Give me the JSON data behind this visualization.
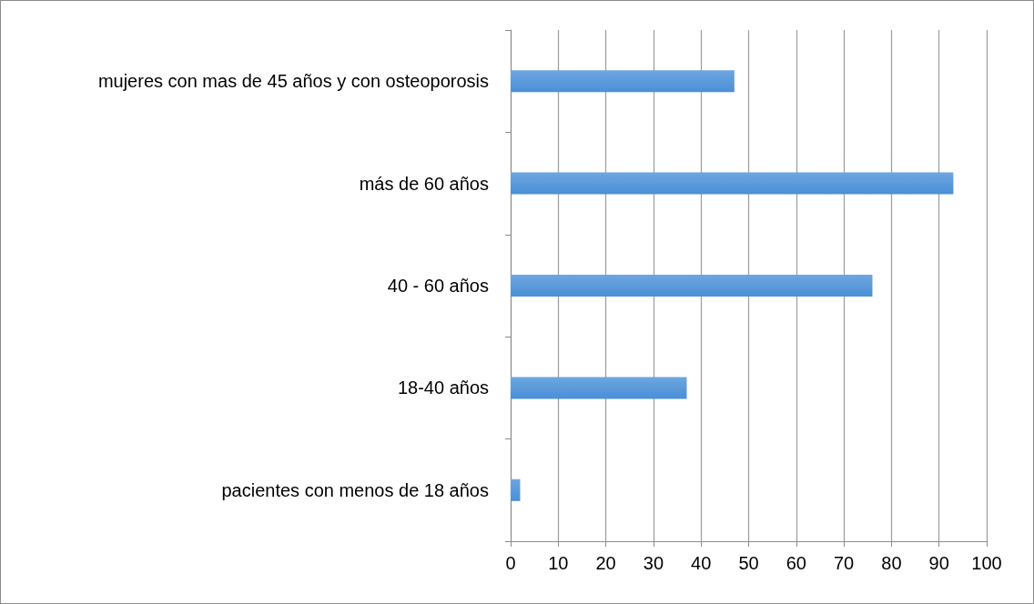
{
  "chart_data": {
    "type": "bar",
    "orientation": "horizontal",
    "categories": [
      "mujeres con mas de 45 años y con osteoporosis",
      "más de 60 años",
      "40 - 60 años",
      "18-40 años",
      "pacientes con menos de 18 años"
    ],
    "values": [
      47,
      93,
      76,
      37,
      2
    ],
    "color": "#4a8fd6",
    "xlim": [
      0,
      100
    ],
    "xticks": [
      0,
      10,
      20,
      30,
      40,
      50,
      60,
      70,
      80,
      90,
      100
    ],
    "grid": "x"
  }
}
